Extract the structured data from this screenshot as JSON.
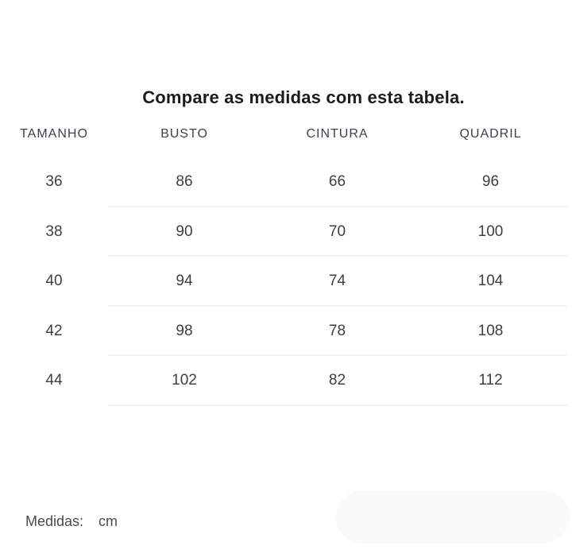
{
  "title": "Compare as medidas com esta tabela.",
  "table": {
    "headers": [
      "TAMANHO",
      "BUSTO",
      "CINTURA",
      "QUADRIL"
    ],
    "rows": [
      [
        "36",
        "86",
        "66",
        "96"
      ],
      [
        "38",
        "90",
        "70",
        "100"
      ],
      [
        "40",
        "94",
        "74",
        "104"
      ],
      [
        "42",
        "98",
        "78",
        "108"
      ],
      [
        "44",
        "102",
        "82",
        "112"
      ]
    ]
  },
  "footer": {
    "label": "Medidas:",
    "unit": "cm"
  },
  "colors": {
    "title_text": "#1c1c1c",
    "header_text": "#3d4248",
    "cell_text": "#3f3f3f",
    "divider": "#f1f1f1",
    "footer_text": "#4a4a4a",
    "panel_background": "#fafafa",
    "page_background": "#ffffff"
  },
  "chart_data": {
    "type": "table",
    "title": "Compare as medidas com esta tabela.",
    "columns": [
      "TAMANHO",
      "BUSTO",
      "CINTURA",
      "QUADRIL"
    ],
    "rows": [
      [
        36,
        86,
        66,
        96
      ],
      [
        38,
        90,
        70,
        100
      ],
      [
        40,
        94,
        74,
        104
      ],
      [
        42,
        98,
        78,
        108
      ],
      [
        44,
        102,
        82,
        112
      ]
    ],
    "unit": "cm",
    "notes": "Size comparison table (Portuguese). Row dividers span only the BUSTO/CINTURA/QUADRIL columns."
  }
}
